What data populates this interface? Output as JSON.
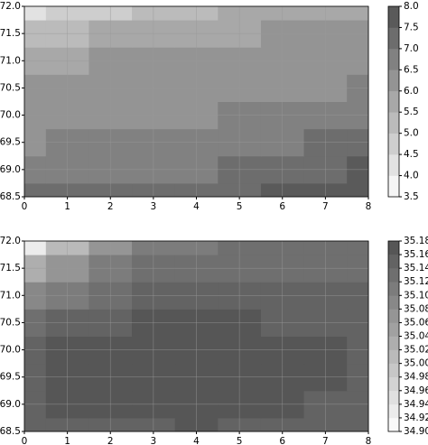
{
  "chart_data": [
    {
      "type": "contour",
      "x": [
        0,
        1,
        2,
        3,
        4,
        5,
        6,
        7,
        8
      ],
      "y": [
        68.5,
        69,
        69.5,
        70,
        70.5,
        71,
        71.5,
        72
      ],
      "z": [
        [
          7.1,
          7.1,
          7.1,
          7.1,
          7.2,
          7.3,
          7.5,
          7.6,
          7.8
        ],
        [
          6.8,
          6.8,
          6.8,
          6.8,
          6.9,
          7.0,
          7.2,
          7.3,
          7.5
        ],
        [
          6.4,
          6.5,
          6.5,
          6.6,
          6.6,
          6.7,
          6.9,
          7.0,
          7.1
        ],
        [
          6.2,
          6.3,
          6.3,
          6.4,
          6.4,
          6.5,
          6.6,
          6.7,
          6.7
        ],
        [
          6.0,
          6.1,
          6.2,
          6.2,
          6.3,
          6.3,
          6.4,
          6.4,
          6.5
        ],
        [
          5.6,
          5.8,
          6.0,
          6.0,
          6.1,
          6.1,
          6.2,
          6.2,
          6.3
        ],
        [
          5.0,
          5.3,
          5.5,
          5.6,
          5.8,
          5.9,
          6.0,
          6.0,
          6.1
        ],
        [
          4.2,
          4.6,
          4.9,
          5.1,
          5.3,
          5.5,
          5.6,
          5.7,
          5.8
        ]
      ],
      "xlim": [
        0,
        8
      ],
      "ylim": [
        68.5,
        72
      ],
      "xticks": [
        0,
        1,
        2,
        3,
        4,
        5,
        6,
        7,
        8
      ],
      "yticks": [
        68.5,
        {
          "value": 69,
          "label": "69.0"
        },
        69.5,
        {
          "value": 70,
          "label": "70.0"
        },
        70.5,
        {
          "value": 71,
          "label": "71.0"
        },
        71.5,
        {
          "value": 72,
          "label": "72.0"
        }
      ],
      "clim": [
        3.5,
        8
      ],
      "cticks": [
        3.5,
        {
          "value": 4,
          "label": "4.0"
        },
        4.5,
        {
          "value": 5,
          "label": "5.0"
        },
        5.5,
        {
          "value": 6,
          "label": "6.0"
        },
        6.5,
        {
          "value": 7,
          "label": "7.0"
        },
        7.5,
        {
          "value": 8,
          "label": "8.0"
        }
      ],
      "cmap": [
        "#ffffff",
        "#505050"
      ],
      "grid": true
    },
    {
      "type": "contour",
      "x": [
        0,
        1,
        2,
        3,
        4,
        5,
        6,
        7,
        8
      ],
      "y": [
        68.5,
        69,
        69.5,
        70,
        70.5,
        71,
        71.5,
        72
      ],
      "z": [
        [
          35.14,
          35.15,
          35.15,
          35.15,
          35.16,
          35.15,
          35.15,
          35.15,
          35.14
        ],
        [
          35.14,
          35.16,
          35.16,
          35.16,
          35.16,
          35.16,
          35.16,
          35.15,
          35.14
        ],
        [
          35.15,
          35.16,
          35.16,
          35.16,
          35.16,
          35.16,
          35.16,
          35.16,
          35.14
        ],
        [
          35.14,
          35.16,
          35.16,
          35.16,
          35.16,
          35.16,
          35.16,
          35.16,
          35.15
        ],
        [
          35.12,
          35.14,
          35.15,
          35.16,
          35.16,
          35.16,
          35.15,
          35.15,
          35.15
        ],
        [
          35.08,
          35.11,
          35.13,
          35.14,
          35.14,
          35.14,
          35.14,
          35.14,
          35.14
        ],
        [
          35.02,
          35.07,
          35.1,
          35.12,
          35.13,
          35.13,
          35.13,
          35.13,
          35.13
        ],
        [
          34.92,
          35.0,
          35.06,
          35.1,
          35.11,
          35.12,
          35.12,
          35.12,
          35.12
        ]
      ],
      "xlim": [
        0,
        8
      ],
      "ylim": [
        68.5,
        72
      ],
      "xticks": [
        0,
        1,
        2,
        3,
        4,
        5,
        6,
        7,
        8
      ],
      "yticks": [
        68.5,
        {
          "value": 69,
          "label": "69.0"
        },
        69.5,
        {
          "value": 70,
          "label": "70.0"
        },
        70.5,
        {
          "value": 71,
          "label": "71.0"
        },
        71.5,
        {
          "value": 72,
          "label": "72.0"
        }
      ],
      "clim": [
        34.9,
        35.18
      ],
      "cticks": [
        {
          "value": 34.9,
          "label": "34.90"
        },
        34.92,
        34.94,
        34.96,
        34.98,
        {
          "value": 35,
          "label": "35.00"
        },
        35.02,
        35.04,
        35.06,
        35.08,
        {
          "value": 35.1,
          "label": "35.10"
        },
        35.12,
        35.14,
        35.16,
        35.18
      ],
      "cmap": [
        "#ffffff",
        "#505050"
      ],
      "grid": true
    }
  ]
}
